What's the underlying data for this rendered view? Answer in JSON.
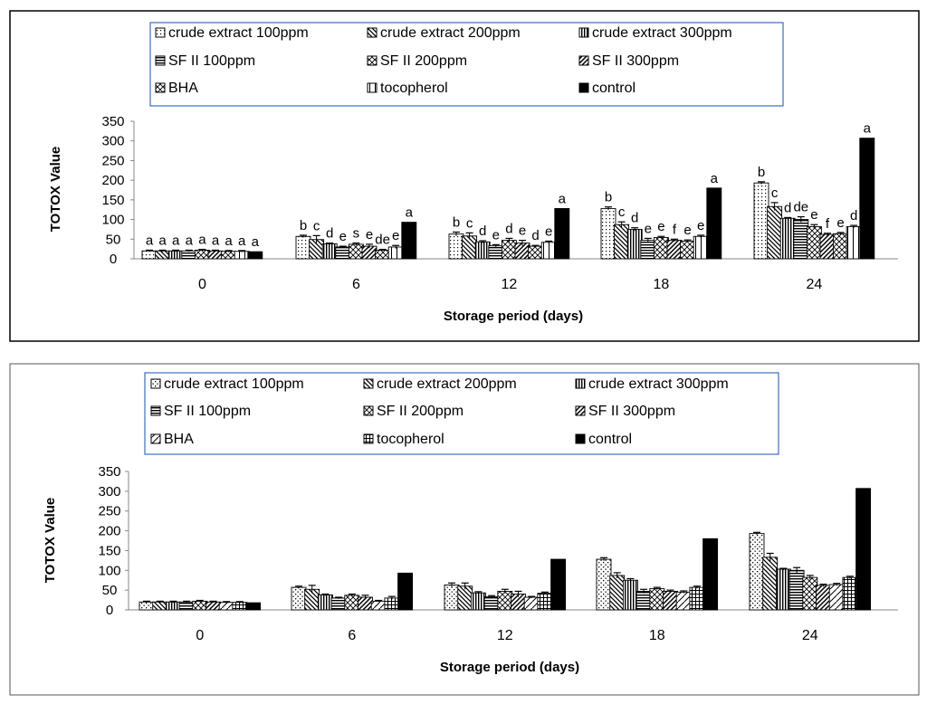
{
  "chart_data": [
    {
      "type": "bar",
      "panel": "top",
      "xlabel": "Storage period (days)",
      "ylabel": "TOTOX Value",
      "ylim": [
        0,
        350
      ],
      "yticks": [
        0,
        50,
        100,
        150,
        200,
        250,
        300,
        350
      ],
      "categories": [
        "0",
        "6",
        "12",
        "18",
        "24"
      ],
      "legend_position": "top",
      "series": [
        {
          "name": "crude extract 100ppm",
          "pattern": "p-dots",
          "values": [
            20,
            57,
            63,
            128,
            193
          ],
          "errors": [
            2,
            3,
            5,
            4,
            3
          ],
          "letters": [
            "a",
            "b",
            "b",
            "b",
            "b"
          ]
        },
        {
          "name": "crude extract 200ppm",
          "pattern": "p-diag",
          "values": [
            20,
            49,
            58,
            87,
            133
          ],
          "errors": [
            2,
            10,
            8,
            7,
            10
          ],
          "letters": [
            "a",
            "c",
            "c",
            "c",
            "c"
          ]
        },
        {
          "name": "crude extract 300ppm",
          "pattern": "p-vert",
          "values": [
            20,
            38,
            43,
            75,
            103
          ],
          "errors": [
            2,
            2,
            3,
            4,
            2
          ],
          "letters": [
            "a",
            "d",
            "d",
            "d",
            "d"
          ]
        },
        {
          "name": "SF II 100ppm",
          "pattern": "p-horiz",
          "values": [
            20,
            30,
            33,
            47,
            100
          ],
          "errors": [
            2,
            2,
            3,
            5,
            7
          ],
          "letters": [
            "a",
            "e",
            "e",
            "e",
            "de"
          ]
        },
        {
          "name": "SF II 200ppm",
          "pattern": "p-xdiag",
          "values": [
            22,
            37,
            47,
            54,
            82
          ],
          "errors": [
            2,
            3,
            5,
            3,
            5
          ],
          "letters": [
            "a",
            "s",
            "d",
            "e",
            "e"
          ]
        },
        {
          "name": "SF II 300ppm",
          "pattern": "p-bdiag",
          "values": [
            20,
            32,
            40,
            47,
            62
          ],
          "errors": [
            2,
            5,
            7,
            3,
            3
          ],
          "letters": [
            "a",
            "e",
            "e",
            "f",
            "f"
          ]
        },
        {
          "name": "BHA",
          "pattern": "p-xdiag",
          "values": [
            19,
            22,
            32,
            45,
            64
          ],
          "errors": [
            2,
            2,
            2,
            3,
            3
          ],
          "letters": [
            "a",
            "de",
            "d",
            "e",
            "e"
          ]
        },
        {
          "name": "tocopherol",
          "pattern": "p-vertw",
          "values": [
            19,
            30,
            42,
            57,
            82
          ],
          "errors": [
            2,
            4,
            3,
            3,
            3
          ],
          "letters": [
            "a",
            "e",
            "e",
            "e",
            "d"
          ]
        },
        {
          "name": "control",
          "pattern": "p-solid",
          "values": [
            18,
            93,
            128,
            180,
            307
          ],
          "errors": [
            0,
            0,
            0,
            0,
            0
          ],
          "letters": [
            "a",
            "a",
            "a",
            "a",
            "a"
          ]
        }
      ]
    },
    {
      "type": "bar",
      "panel": "bottom",
      "xlabel": "Storage period (days)",
      "ylabel": "TOTOX Value",
      "ylim": [
        0,
        350
      ],
      "yticks": [
        0,
        50,
        100,
        150,
        200,
        250,
        300,
        350
      ],
      "categories": [
        "0",
        "6",
        "12",
        "18",
        "24"
      ],
      "legend_position": "top",
      "series": [
        {
          "name": "crude extract 100ppm",
          "pattern": "p-dots2",
          "values": [
            20,
            57,
            63,
            128,
            193
          ],
          "errors": [
            2,
            3,
            5,
            4,
            3
          ]
        },
        {
          "name": "crude extract 200ppm",
          "pattern": "p-diag",
          "values": [
            20,
            52,
            60,
            87,
            133
          ],
          "errors": [
            2,
            10,
            8,
            7,
            10
          ]
        },
        {
          "name": "crude extract 300ppm",
          "pattern": "p-vert",
          "values": [
            20,
            38,
            43,
            75,
            103
          ],
          "errors": [
            2,
            2,
            3,
            4,
            2
          ]
        },
        {
          "name": "SF II 100ppm",
          "pattern": "p-horiz",
          "values": [
            20,
            30,
            33,
            47,
            100
          ],
          "errors": [
            2,
            2,
            3,
            5,
            7
          ]
        },
        {
          "name": "SF II 200ppm",
          "pattern": "p-xdiag",
          "values": [
            22,
            37,
            47,
            54,
            82
          ],
          "errors": [
            2,
            3,
            5,
            3,
            5
          ]
        },
        {
          "name": "SF II 300ppm",
          "pattern": "p-bdiag",
          "values": [
            20,
            32,
            40,
            47,
            62
          ],
          "errors": [
            2,
            5,
            7,
            3,
            3
          ]
        },
        {
          "name": "BHA",
          "pattern": "p-bdiag2",
          "values": [
            19,
            22,
            32,
            45,
            64
          ],
          "errors": [
            2,
            2,
            2,
            3,
            3
          ]
        },
        {
          "name": "tocopherol",
          "pattern": "p-grid",
          "values": [
            19,
            30,
            42,
            57,
            82
          ],
          "errors": [
            2,
            4,
            3,
            3,
            3
          ]
        },
        {
          "name": "control",
          "pattern": "p-solid",
          "values": [
            18,
            93,
            128,
            180,
            307
          ],
          "errors": [
            0,
            0,
            0,
            0,
            0
          ]
        }
      ]
    }
  ]
}
